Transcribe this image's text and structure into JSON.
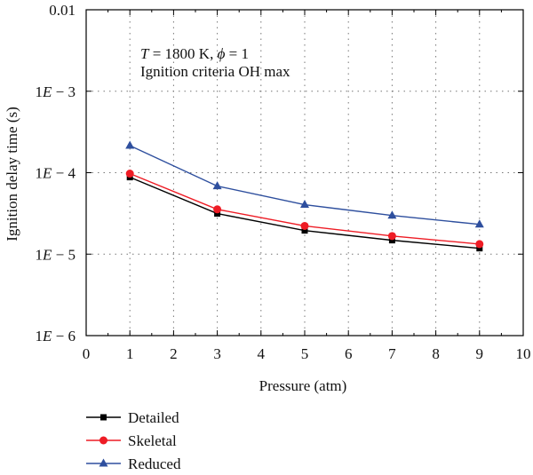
{
  "chart_data": {
    "type": "line",
    "annotation": {
      "line1_T": "T",
      "line1_rest": " = 1800 K, ",
      "line1_phi": "ϕ",
      "line1_end": " = 1",
      "line2": "Ignition criteria OH max"
    },
    "xlabel": "Pressure (atm)",
    "ylabel": "Ignition delay time (s)",
    "xlim": [
      0,
      10
    ],
    "ylim": [
      1e-06,
      0.01
    ],
    "yscale": "log",
    "grid": true,
    "legend_position": "bottom-left (below plot)",
    "x_ticks": [
      "0",
      "1",
      "2",
      "3",
      "4",
      "5",
      "6",
      "7",
      "8",
      "9",
      "10"
    ],
    "y_ticks": [
      {
        "value": 1e-06,
        "label": "1E − 6"
      },
      {
        "value": 1e-05,
        "label": "1E − 5"
      },
      {
        "value": 0.0001,
        "label": "1E − 4"
      },
      {
        "value": 0.001,
        "label": "1E − 3"
      },
      {
        "value": 0.01,
        "label": "0.01"
      }
    ],
    "x": [
      1,
      3,
      5,
      7,
      9
    ],
    "series": [
      {
        "name": "Detailed",
        "color": "#000000",
        "marker": "square",
        "values": [
          8.8e-05,
          3.15e-05,
          1.95e-05,
          1.48e-05,
          1.18e-05
        ]
      },
      {
        "name": "Skeletal",
        "color": "#ee1c25",
        "marker": "circle",
        "values": [
          9.75e-05,
          3.55e-05,
          2.22e-05,
          1.67e-05,
          1.33e-05
        ]
      },
      {
        "name": "Reduced",
        "color": "#2e4f9e",
        "marker": "triangle",
        "values": [
          0.000215,
          6.85e-05,
          4.05e-05,
          2.98e-05,
          2.32e-05
        ]
      }
    ]
  }
}
